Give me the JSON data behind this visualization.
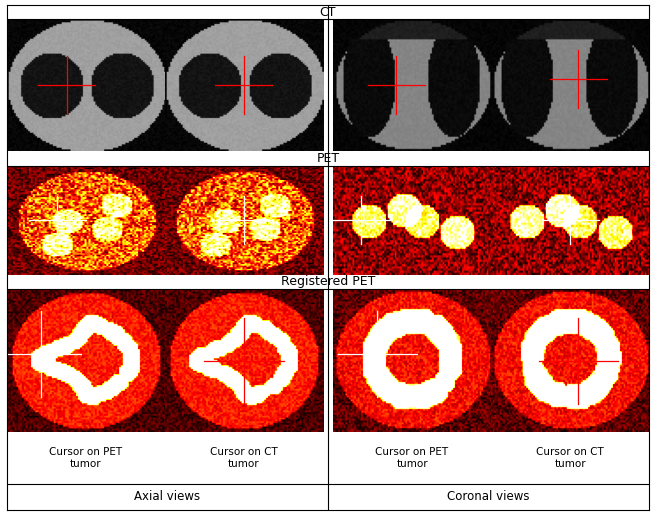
{
  "title": "CT",
  "row_labels": [
    "CT",
    "PET",
    "Registered PET"
  ],
  "col_group_labels": [
    "Axial views",
    "Coronal views"
  ],
  "cell_labels": [
    "Cursor on PET\ntumor",
    "Cursor on CT\ntumor",
    "Cursor on PET\ntumor",
    "Cursor on CT\ntumor"
  ],
  "bg_color": "#ffffff",
  "border_color": "#000000",
  "row_label_fontsize": 9,
  "cell_label_fontsize": 7.5,
  "group_label_fontsize": 8.5,
  "n_rows": 3,
  "n_cols": 4,
  "figsize": [
    6.56,
    5.15
  ],
  "dpi": 100,
  "crosshair_color_ct": "#ff0000",
  "crosshair_color_pet": "#ffffff",
  "crosshair_color_reg_even": "#ffffff",
  "crosshair_color_reg_odd": "#ff0000"
}
